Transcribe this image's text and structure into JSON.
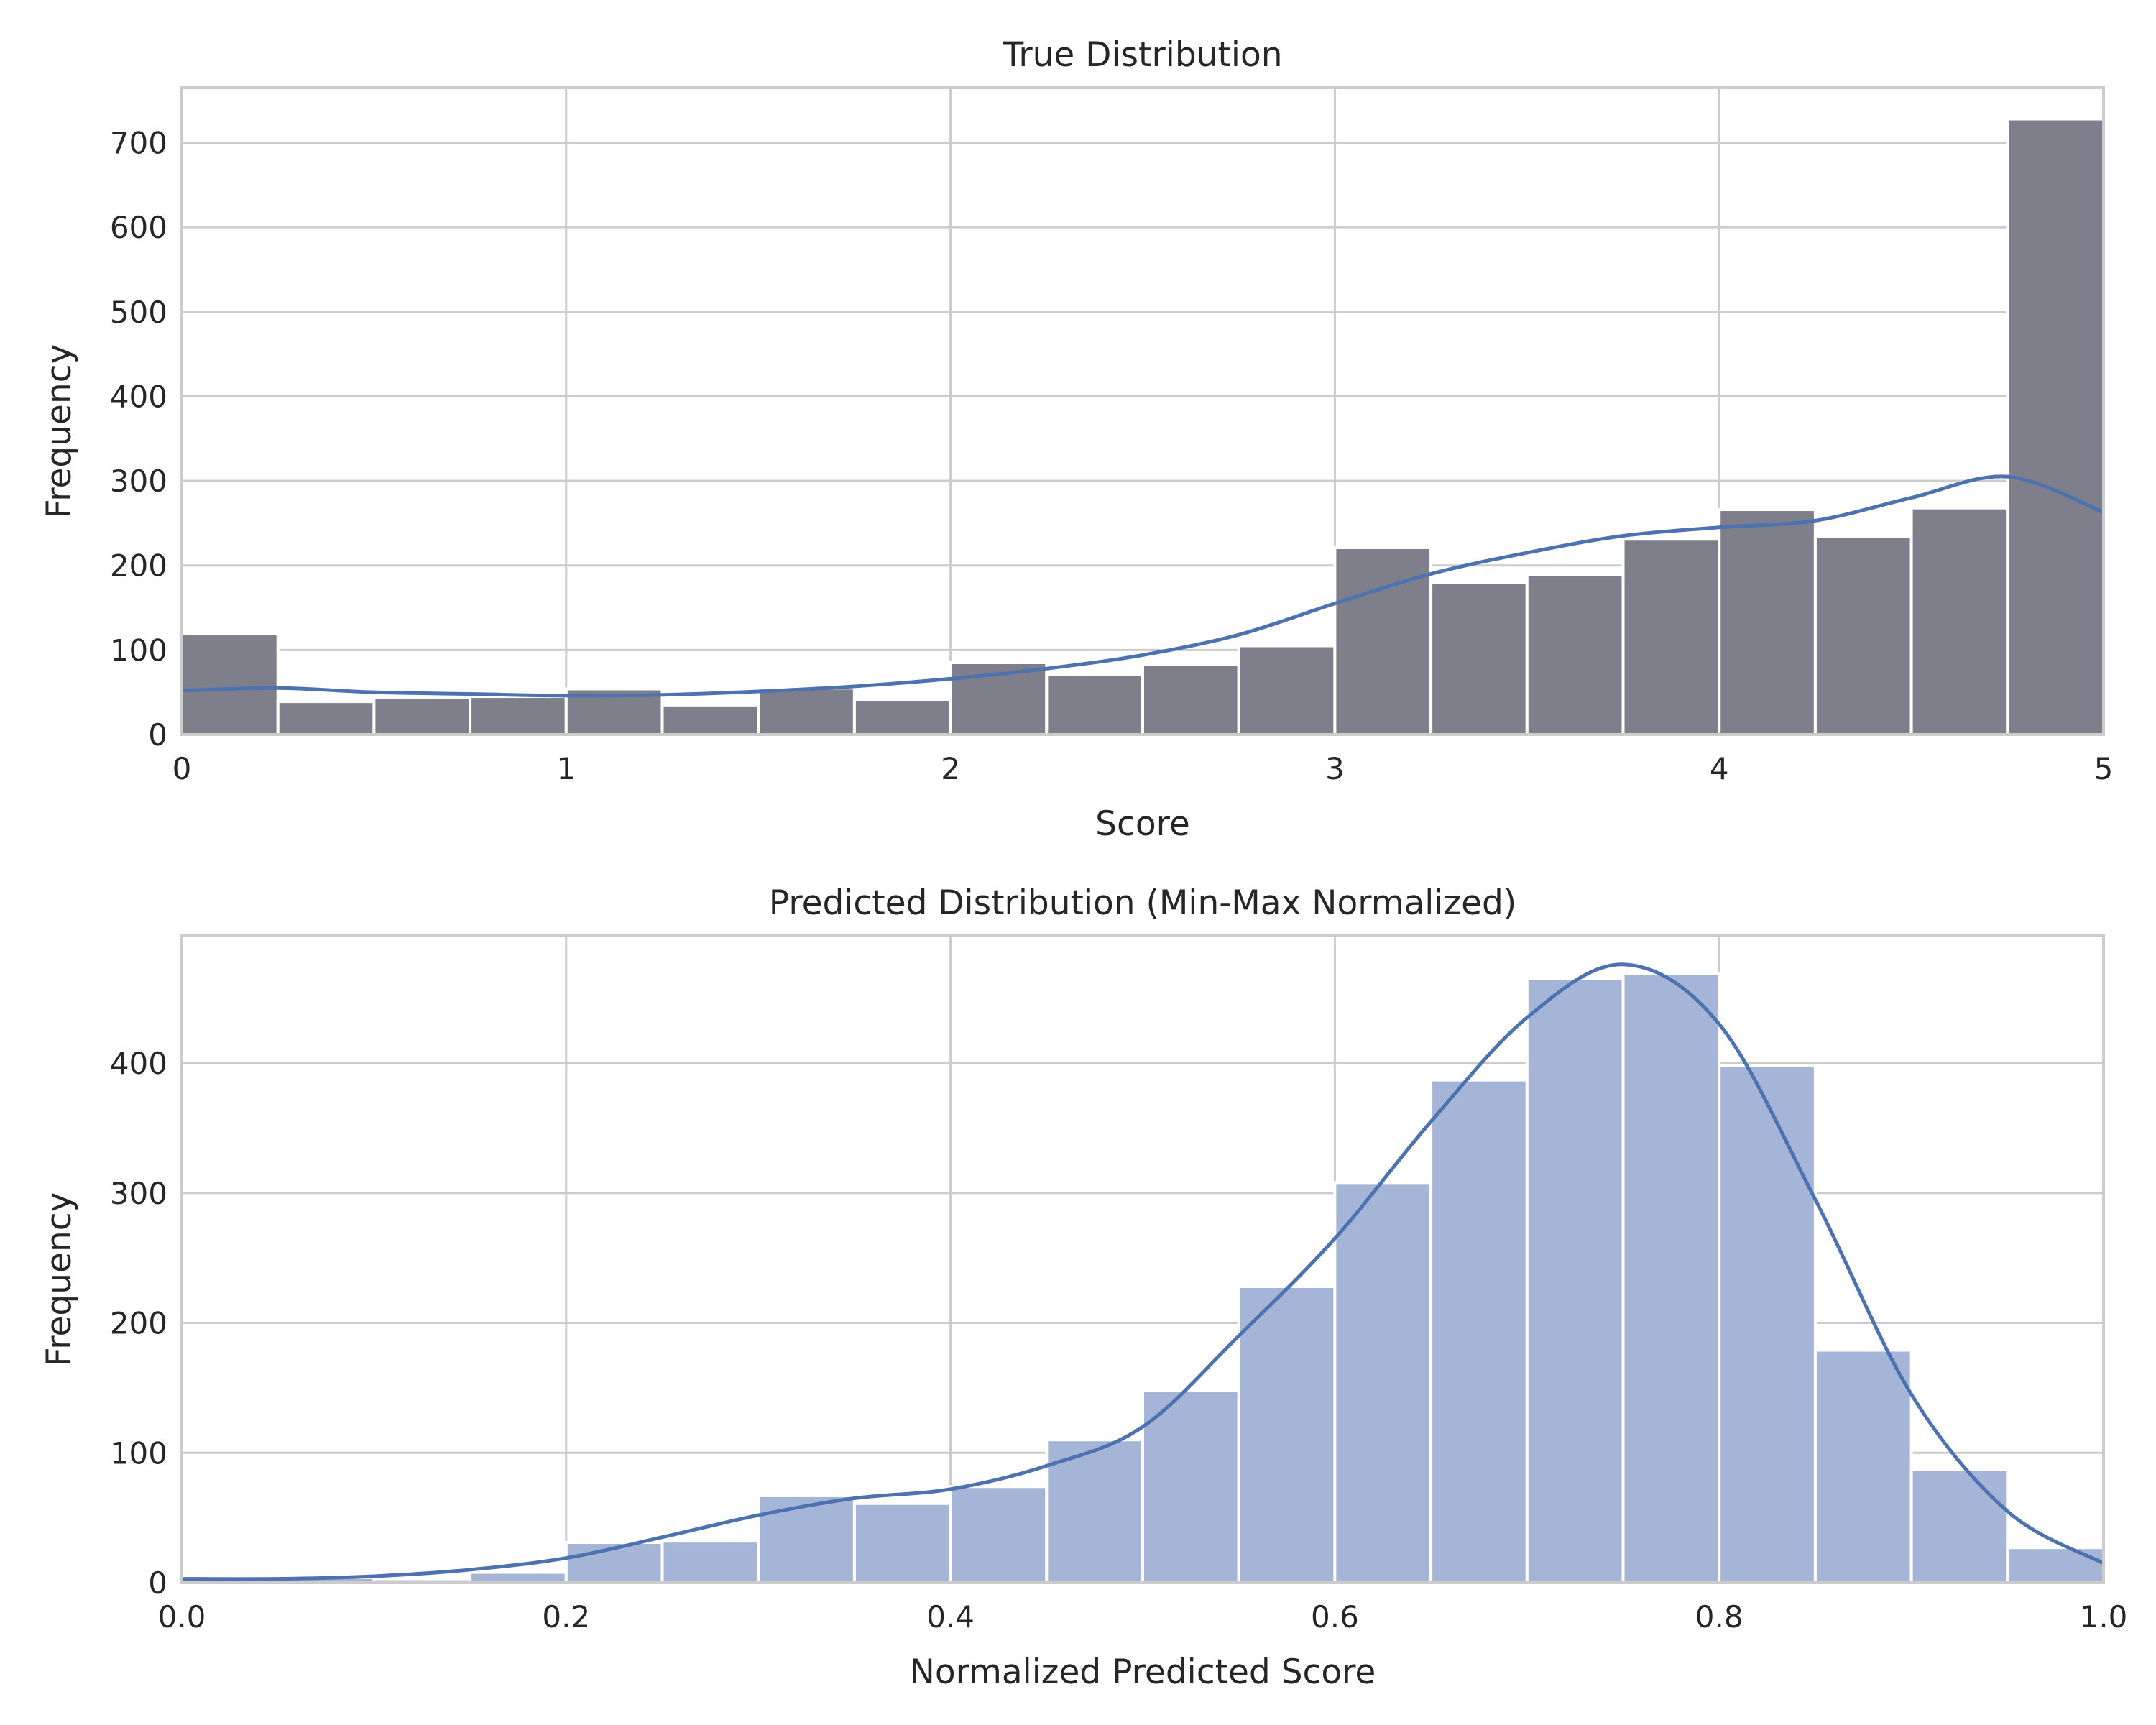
{
  "chart_data": [
    {
      "type": "bar",
      "title": "True Distribution",
      "xlabel": "Score",
      "ylabel": "Frequency",
      "xlim": [
        0,
        5
      ],
      "ylim": [
        0,
        765
      ],
      "xticks": [
        "0",
        "1",
        "2",
        "3",
        "4",
        "5"
      ],
      "yticks": [
        "0",
        "100",
        "200",
        "300",
        "400",
        "500",
        "600",
        "700"
      ],
      "xtick_values": [
        0,
        1,
        2,
        3,
        4,
        5
      ],
      "ytick_values": [
        0,
        100,
        200,
        300,
        400,
        500,
        600,
        700
      ],
      "grid": true,
      "bin_edges": [
        0,
        0.25,
        0.5,
        0.75,
        1.0,
        1.25,
        1.5,
        1.75,
        2.0,
        2.25,
        2.5,
        2.75,
        3.0,
        3.25,
        3.5,
        3.75,
        4.0,
        4.25,
        4.5,
        4.75,
        5.0
      ],
      "values": [
        119,
        39,
        44,
        45,
        54,
        35,
        55,
        41,
        85,
        71,
        83,
        105,
        221,
        180,
        189,
        231,
        266,
        234,
        268,
        728
      ],
      "bar_color": "#7f7f8c",
      "kde": {
        "color": "#4c72b0",
        "x": [
          0,
          0.25,
          0.5,
          0.75,
          1.0,
          1.25,
          1.5,
          1.75,
          2.0,
          2.25,
          2.5,
          2.75,
          3.0,
          3.25,
          3.5,
          3.75,
          4.0,
          4.25,
          4.5,
          4.75,
          5.0
        ],
        "y": [
          52,
          55,
          50,
          48,
          46,
          47,
          51,
          57,
          66,
          78,
          94,
          118,
          155,
          190,
          215,
          235,
          245,
          253,
          280,
          305,
          263
        ]
      }
    },
    {
      "type": "bar",
      "title": "Predicted Distribution (Min-Max Normalized)",
      "xlabel": "Normalized Predicted Score",
      "ylabel": "Frequency",
      "xlim": [
        0,
        1
      ],
      "ylim": [
        0,
        498
      ],
      "xticks": [
        "0.0",
        "0.2",
        "0.4",
        "0.6",
        "0.8",
        "1.0"
      ],
      "yticks": [
        "0",
        "100",
        "200",
        "300",
        "400"
      ],
      "xtick_values": [
        0,
        0.2,
        0.4,
        0.6,
        0.8,
        1.0
      ],
      "ytick_values": [
        0,
        100,
        200,
        300,
        400
      ],
      "grid": true,
      "bin_edges": [
        0,
        0.05,
        0.1,
        0.15,
        0.2,
        0.25,
        0.3,
        0.35,
        0.4,
        0.45,
        0.5,
        0.55,
        0.6,
        0.65,
        0.7,
        0.75,
        0.8,
        0.85,
        0.9,
        0.95,
        1.0
      ],
      "values": [
        3,
        4,
        3,
        8,
        31,
        32,
        67,
        61,
        74,
        110,
        148,
        228,
        308,
        387,
        465,
        469,
        398,
        179,
        87,
        27
      ],
      "bar_color": "#a4b5d7",
      "kde": {
        "color": "#4c72b0",
        "x": [
          0,
          0.05,
          0.1,
          0.15,
          0.2,
          0.25,
          0.3,
          0.35,
          0.4,
          0.45,
          0.5,
          0.55,
          0.6,
          0.65,
          0.7,
          0.75,
          0.8,
          0.85,
          0.9,
          0.95,
          1.0
        ],
        "y": [
          3,
          3,
          5,
          10,
          19,
          35,
          52,
          65,
          72,
          90,
          120,
          190,
          265,
          355,
          435,
          476,
          430,
          295,
          145,
          55,
          15
        ]
      }
    }
  ]
}
